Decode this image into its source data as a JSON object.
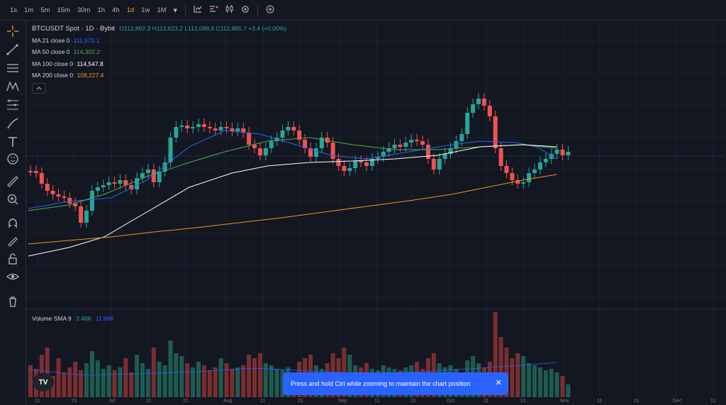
{
  "timeframes": [
    {
      "label": "1s"
    },
    {
      "label": "1m"
    },
    {
      "label": "5m"
    },
    {
      "label": "15m"
    },
    {
      "label": "30m"
    },
    {
      "label": "1h"
    },
    {
      "label": "4h"
    },
    {
      "label": "1d",
      "active": true
    },
    {
      "label": "1w"
    },
    {
      "label": "1M"
    }
  ],
  "toolbar_icons": [
    "chevron-down-icon",
    "bar-chart-icon",
    "indicators-icon",
    "candles-icon",
    "settings-icon",
    "add-icon"
  ],
  "left_tools": [
    "crosshair-icon",
    "trend-line-icon",
    "horizontal-lines-icon",
    "pattern-icon",
    "fib-icon",
    "brush-icon",
    "text-icon",
    "emoji-icon",
    "ruler-icon",
    "zoom-icon",
    "magnet-icon",
    "lock-icon",
    "eye-icon",
    "trash-icon"
  ],
  "legend": {
    "symbol": "BTCUSDT Spot · 1D · Bybit",
    "ohlc": "O112,892.3 H113,623.2 L112,088.9 C112,895.7 +3.4 (+0.00%)",
    "ma21_label": "MA 21 close 0",
    "ma21_value": "111,570.1",
    "ma50_label": "MA 50 close 0",
    "ma50_value": "114,302.2",
    "ma100_label": "MA 100 close 0",
    "ma100_value": "114,547.8",
    "ma200_label": "MA 200 close 0",
    "ma200_value": "109,227.4",
    "volume_label": "Volume SMA 9",
    "volume_value": "3.46K",
    "volume_sma": "11.99K"
  },
  "x_axis_labels": [
    "11",
    "21",
    "Jul",
    "11",
    "21",
    "Aug",
    "11",
    "21",
    "Sep",
    "11",
    "21",
    "Oct",
    "11",
    "21",
    "Nov",
    "11",
    "21",
    "Dec",
    "11"
  ],
  "colors": {
    "up": "#26a69a",
    "down": "#ef5350",
    "ma21": "#2962ff",
    "ma50": "#4caf50",
    "ma100": "#ffffff",
    "ma200": "#f7931a",
    "accent": "#f0a030"
  },
  "toast": {
    "message": "Press and hold Ctrl while zooming to maintain the chart position",
    "close": "✕"
  }
}
